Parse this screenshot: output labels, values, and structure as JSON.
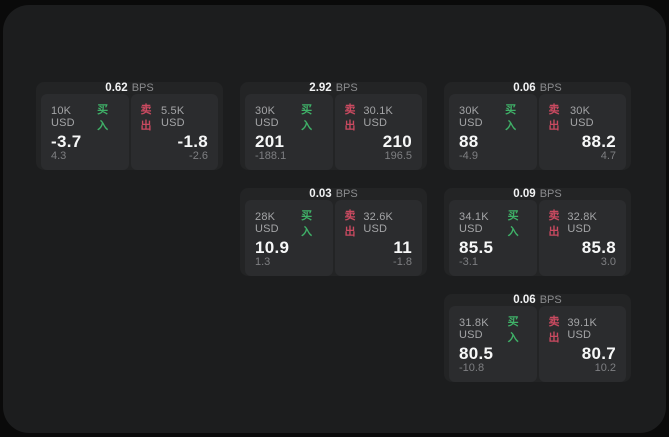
{
  "labels": {
    "bps": "BPS",
    "buy": "买入",
    "sell": "卖出"
  },
  "colors": {
    "buy_green": "#3fb168",
    "sell_red": "#c94a60",
    "panel_bg": "#1c1d1e",
    "card_bg": "#232425",
    "tile_bg": "#2b2c2e",
    "outer_bg": "#0a0a0a"
  },
  "cards": [
    {
      "bps": "0.62",
      "buy": {
        "amount": "10K USD",
        "value": "-3.7",
        "sub": "4.3"
      },
      "sell": {
        "amount": "5.5K USD",
        "value": "-1.8",
        "sub": "-2.6"
      }
    },
    {
      "bps": "2.92",
      "buy": {
        "amount": "30K USD",
        "value": "201",
        "sub": "-188.1"
      },
      "sell": {
        "amount": "30.1K USD",
        "value": "210",
        "sub": "196.5"
      }
    },
    {
      "bps": "0.06",
      "buy": {
        "amount": "30K USD",
        "value": "88",
        "sub": "-4.9"
      },
      "sell": {
        "amount": "30K USD",
        "value": "88.2",
        "sub": "4.7"
      }
    },
    {
      "bps": "0.03",
      "buy": {
        "amount": "28K USD",
        "value": "10.9",
        "sub": "1.3"
      },
      "sell": {
        "amount": "32.6K USD",
        "value": "11",
        "sub": "-1.8"
      }
    },
    {
      "bps": "0.09",
      "buy": {
        "amount": "34.1K USD",
        "value": "85.5",
        "sub": "-3.1"
      },
      "sell": {
        "amount": "32.8K USD",
        "value": "85.8",
        "sub": "3.0"
      }
    },
    {
      "bps": "0.06",
      "buy": {
        "amount": "31.8K USD",
        "value": "80.5",
        "sub": "-10.8"
      },
      "sell": {
        "amount": "39.1K USD",
        "value": "80.7",
        "sub": "10.2"
      }
    }
  ]
}
